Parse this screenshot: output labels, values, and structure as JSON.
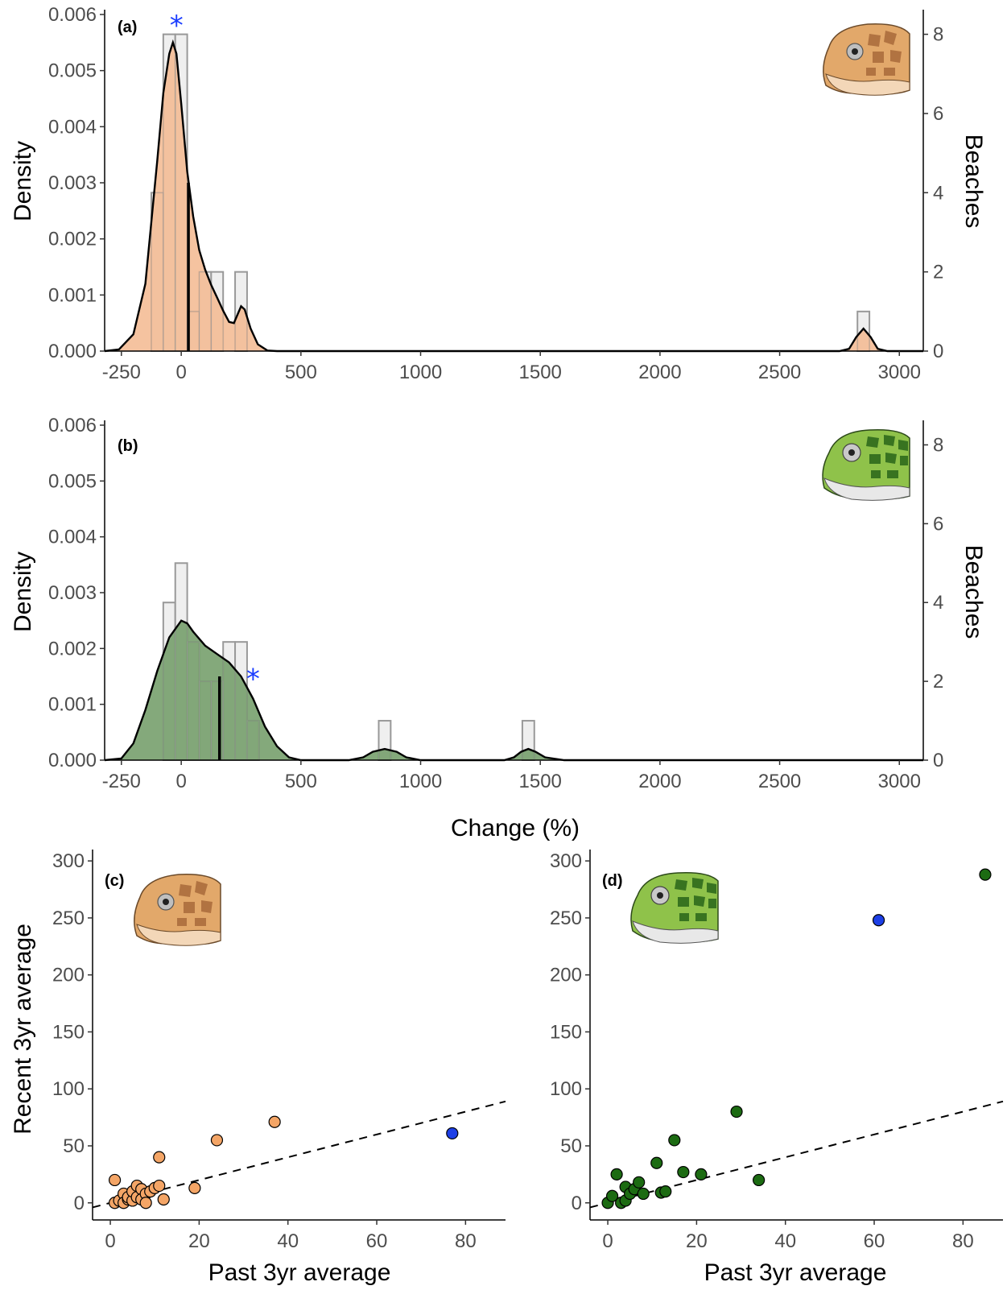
{
  "colors": {
    "loggerhead_fill": "#f3b98f",
    "green_fill": "#6f9a64",
    "hist_fill": "#efefef",
    "hist_stroke": "#999999",
    "highlight": "#1d3fe6",
    "loggerhead_point": "#f4a566",
    "green_point": "#1c6b12",
    "star": "#1a3cff"
  },
  "icons": {
    "loggerhead": "loggerhead-turtle-head-icon",
    "green": "green-turtle-head-icon"
  },
  "chart_data": [
    {
      "panel": "(a)",
      "type": "histogram-density",
      "xlabel": "",
      "ylabel": "Density",
      "ylabel_right": "Beaches",
      "xlim": [
        -320,
        3100
      ],
      "ylim": [
        0,
        0.006
      ],
      "xticks": [
        -250,
        0,
        500,
        1000,
        1500,
        2000,
        2500,
        3000
      ],
      "yticks": [
        "0.000",
        "0.001",
        "0.002",
        "0.003",
        "0.004",
        "0.005",
        "0.006"
      ],
      "yticks_right": [
        0,
        2,
        4,
        6,
        8
      ],
      "right_axis_max": 8,
      "bin_width": 50,
      "bins": [
        {
          "x": -100,
          "count": 4
        },
        {
          "x": -50,
          "count": 8
        },
        {
          "x": 0,
          "count": 8
        },
        {
          "x": 50,
          "count": 1
        },
        {
          "x": 100,
          "count": 2
        },
        {
          "x": 150,
          "count": 2
        },
        {
          "x": 200,
          "count": 0
        },
        {
          "x": 250,
          "count": 2
        },
        {
          "x": 2850,
          "count": 1
        }
      ],
      "density": [
        [
          -320,
          0
        ],
        [
          -260,
          3e-05
        ],
        [
          -200,
          0.0003
        ],
        [
          -150,
          0.0012
        ],
        [
          -100,
          0.0034
        ],
        [
          -75,
          0.0046
        ],
        [
          -50,
          0.0053
        ],
        [
          -35,
          0.0055
        ],
        [
          -20,
          0.0053
        ],
        [
          0,
          0.0044
        ],
        [
          25,
          0.0032
        ],
        [
          50,
          0.0024
        ],
        [
          75,
          0.0018
        ],
        [
          100,
          0.00145
        ],
        [
          125,
          0.00118
        ],
        [
          150,
          0.00095
        ],
        [
          175,
          0.00072
        ],
        [
          200,
          0.00052
        ],
        [
          220,
          0.0005
        ],
        [
          250,
          0.0008
        ],
        [
          265,
          0.00074
        ],
        [
          290,
          0.0004
        ],
        [
          320,
          0.00012
        ],
        [
          360,
          1e-05
        ],
        [
          400,
          0
        ],
        [
          2750,
          0
        ],
        [
          2790,
          4e-05
        ],
        [
          2820,
          0.00025
        ],
        [
          2850,
          0.0004
        ],
        [
          2880,
          0.00025
        ],
        [
          2910,
          4e-05
        ],
        [
          2950,
          0
        ],
        [
          3100,
          0
        ]
      ],
      "median_line": {
        "x": 30,
        "y": 0.003
      },
      "annotation": {
        "text": "*",
        "x": -20,
        "y": 0.0059
      }
    },
    {
      "panel": "(b)",
      "type": "histogram-density",
      "xlabel": "Change (%)",
      "ylabel": "Density",
      "ylabel_right": "Beaches",
      "xlim": [
        -320,
        3100
      ],
      "ylim": [
        0,
        0.006
      ],
      "xticks": [
        -250,
        0,
        500,
        1000,
        1500,
        2000,
        2500,
        3000
      ],
      "yticks": [
        "0.000",
        "0.001",
        "0.002",
        "0.003",
        "0.004",
        "0.005",
        "0.006"
      ],
      "yticks_right": [
        0,
        2,
        4,
        6,
        8
      ],
      "right_axis_max": 8,
      "bin_width": 50,
      "bins": [
        {
          "x": -50,
          "count": 4
        },
        {
          "x": 0,
          "count": 5
        },
        {
          "x": 50,
          "count": 3
        },
        {
          "x": 100,
          "count": 2
        },
        {
          "x": 150,
          "count": 2
        },
        {
          "x": 200,
          "count": 3
        },
        {
          "x": 250,
          "count": 3
        },
        {
          "x": 300,
          "count": 1
        },
        {
          "x": 850,
          "count": 1
        },
        {
          "x": 1450,
          "count": 1
        }
      ],
      "density": [
        [
          -320,
          0
        ],
        [
          -250,
          3e-05
        ],
        [
          -200,
          0.0003
        ],
        [
          -150,
          0.0009
        ],
        [
          -100,
          0.0016
        ],
        [
          -50,
          0.0022
        ],
        [
          0,
          0.0025
        ],
        [
          25,
          0.00245
        ],
        [
          50,
          0.0023
        ],
        [
          100,
          0.00205
        ],
        [
          150,
          0.0019
        ],
        [
          200,
          0.00175
        ],
        [
          250,
          0.0015
        ],
        [
          300,
          0.0011
        ],
        [
          350,
          0.0006
        ],
        [
          400,
          0.00025
        ],
        [
          450,
          5e-05
        ],
        [
          500,
          0
        ],
        [
          700,
          0
        ],
        [
          760,
          5e-05
        ],
        [
          800,
          0.00015
        ],
        [
          850,
          0.0002
        ],
        [
          900,
          0.00015
        ],
        [
          940,
          5e-05
        ],
        [
          1000,
          0
        ],
        [
          1350,
          0
        ],
        [
          1390,
          5e-05
        ],
        [
          1420,
          0.00015
        ],
        [
          1450,
          0.0002
        ],
        [
          1480,
          0.00015
        ],
        [
          1520,
          5e-05
        ],
        [
          1600,
          0
        ],
        [
          3100,
          0
        ]
      ],
      "median_line": {
        "x": 160,
        "y": 0.0015
      },
      "annotation": {
        "text": "*",
        "x": 300,
        "y": 0.00155
      }
    },
    {
      "panel": "(c)",
      "type": "scatter",
      "xlabel": "Past 3yr average",
      "ylabel": "Recent 3yr average",
      "xlim": [
        -4,
        89
      ],
      "ylim": [
        -15,
        310
      ],
      "xticks": [
        0,
        20,
        40,
        60,
        80
      ],
      "yticks": [
        0,
        50,
        100,
        150,
        200,
        250,
        300
      ],
      "reference_line": {
        "style": "dashed",
        "intercept": 0,
        "slope": 1
      },
      "points": [
        [
          1,
          20
        ],
        [
          1,
          0
        ],
        [
          2,
          2
        ],
        [
          3,
          8
        ],
        [
          3,
          0
        ],
        [
          4,
          3
        ],
        [
          4,
          5
        ],
        [
          5,
          2
        ],
        [
          5,
          10
        ],
        [
          6,
          15
        ],
        [
          6,
          5
        ],
        [
          7,
          12
        ],
        [
          7,
          3
        ],
        [
          8,
          8
        ],
        [
          8,
          0
        ],
        [
          9,
          10
        ],
        [
          10,
          13
        ],
        [
          11,
          15
        ],
        [
          11,
          40
        ],
        [
          12,
          3
        ],
        [
          19,
          13
        ],
        [
          24,
          55
        ],
        [
          37,
          71
        ]
      ],
      "highlight_points": [
        [
          77,
          61
        ]
      ]
    },
    {
      "panel": "(d)",
      "type": "scatter",
      "xlabel": "Past 3yr average",
      "ylabel": "",
      "xlim": [
        -4,
        89
      ],
      "ylim": [
        -15,
        310
      ],
      "xticks": [
        0,
        20,
        40,
        60,
        80
      ],
      "yticks": [
        0,
        50,
        100,
        150,
        200,
        250,
        300
      ],
      "reference_line": {
        "style": "dashed",
        "intercept": 0,
        "slope": 1
      },
      "points": [
        [
          0,
          0
        ],
        [
          1,
          6
        ],
        [
          2,
          25
        ],
        [
          3,
          0
        ],
        [
          4,
          14
        ],
        [
          4,
          2
        ],
        [
          5,
          8
        ],
        [
          6,
          12
        ],
        [
          7,
          18
        ],
        [
          8,
          8
        ],
        [
          11,
          35
        ],
        [
          12,
          9
        ],
        [
          13,
          10
        ],
        [
          15,
          55
        ],
        [
          17,
          27
        ],
        [
          21,
          25
        ],
        [
          29,
          80
        ],
        [
          34,
          20
        ],
        [
          85,
          288
        ]
      ],
      "highlight_points": [
        [
          61,
          248
        ]
      ]
    }
  ]
}
